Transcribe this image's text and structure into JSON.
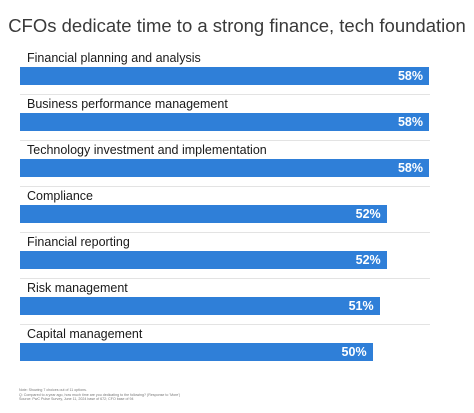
{
  "chart_data": {
    "type": "bar",
    "orientation": "horizontal",
    "title": "CFOs dedicate time to a strong finance, tech foundation",
    "categories": [
      "Financial planning and analysis",
      "Business performance management",
      "Technology investment and implementation",
      "Compliance",
      "Financial reporting",
      "Risk management",
      "Capital management"
    ],
    "values": [
      58,
      58,
      58,
      52,
      52,
      51,
      50
    ],
    "value_labels": [
      "58%",
      "58%",
      "58%",
      "52%",
      "52%",
      "51%",
      "50%"
    ],
    "value_suffix": "%",
    "xlim": [
      0,
      60
    ],
    "bar_color": "#2f7fd8",
    "label_color": "#ffffff",
    "grid": false,
    "legend": false
  },
  "footnote": {
    "line1": "Note: Showing 7 choices out of 11 options.",
    "line2": "Q: Compared to a year ago, how much time are you dedicating to the following? (Response to 'More')",
    "line3": "Source: PwC Pulse Survey, June 11, 2024 base of 672; CFO base of 94"
  }
}
